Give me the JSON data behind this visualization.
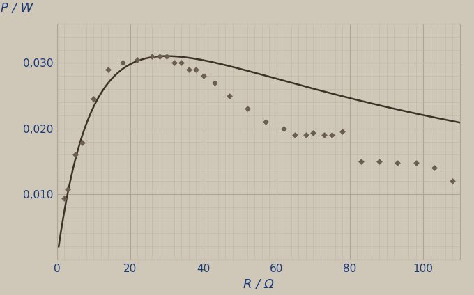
{
  "title": "",
  "xlabel": "R / Ω",
  "ylabel": "P / W",
  "xlim": [
    0,
    110
  ],
  "ylim": [
    0,
    0.036
  ],
  "xticks": [
    0,
    20,
    40,
    60,
    80,
    100
  ],
  "yticks": [
    0,
    0.01,
    0.02,
    0.03
  ],
  "background_color": "#cfc8b8",
  "grid_minor_color": "#bfb5a5",
  "grid_major_color": "#b0a595",
  "curve_color": "#3d3228",
  "marker_color": "#6b5e4e",
  "scatter_x": [
    2,
    3,
    5,
    7,
    10,
    14,
    18,
    22,
    26,
    28,
    30,
    32,
    34,
    36,
    38,
    40,
    43,
    47,
    52,
    57,
    62,
    65,
    68,
    70,
    73,
    75,
    78,
    83,
    88,
    93,
    98,
    103,
    108
  ],
  "scatter_y": [
    0.0094,
    0.0107,
    0.016,
    0.0178,
    0.0245,
    0.029,
    0.03,
    0.0305,
    0.031,
    0.031,
    0.031,
    0.03,
    0.03,
    0.029,
    0.029,
    0.028,
    0.027,
    0.025,
    0.023,
    0.021,
    0.02,
    0.019,
    0.019,
    0.0193,
    0.019,
    0.019,
    0.0195,
    0.015,
    0.015,
    0.0148,
    0.0148,
    0.014,
    0.012
  ],
  "curve_E": 1.93,
  "curve_r": 30,
  "axis_label_color": "#1a3a7a",
  "tick_label_color": "#1a3a7a",
  "axis_label_fontsize": 13,
  "tick_fontsize": 11,
  "figsize": [
    6.8,
    4.24
  ],
  "dpi": 100
}
